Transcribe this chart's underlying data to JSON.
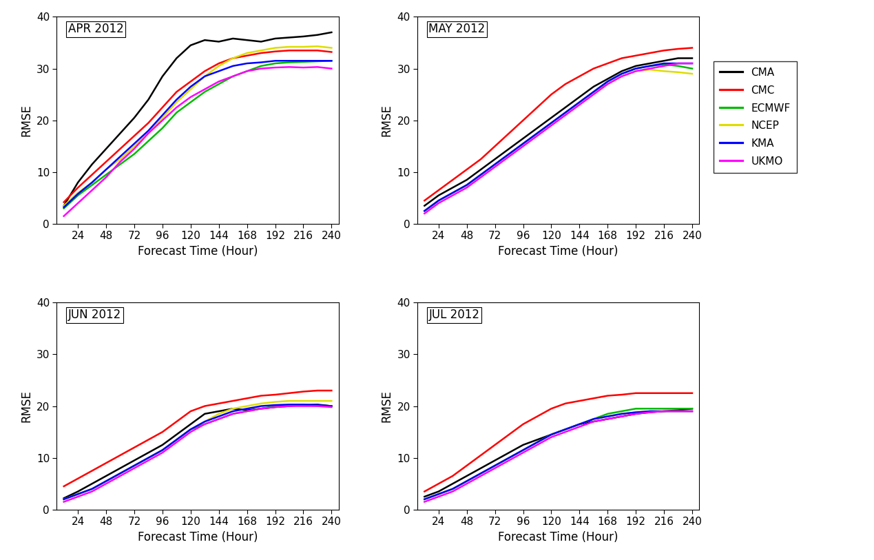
{
  "x": [
    12,
    24,
    36,
    48,
    60,
    72,
    84,
    96,
    108,
    120,
    132,
    144,
    156,
    168,
    180,
    192,
    204,
    216,
    228,
    240
  ],
  "panels": [
    {
      "title": "APR 2012",
      "series": {
        "CMA": [
          3.5,
          8.0,
          11.5,
          14.5,
          17.5,
          20.5,
          24.0,
          28.5,
          32.0,
          34.5,
          35.5,
          35.2,
          35.8,
          35.5,
          35.2,
          35.8,
          36.0,
          36.2,
          36.5,
          37.0
        ],
        "CMC": [
          4.2,
          7.0,
          9.5,
          12.0,
          14.5,
          17.0,
          19.5,
          22.5,
          25.5,
          27.5,
          29.5,
          31.0,
          32.0,
          32.5,
          33.0,
          33.3,
          33.5,
          33.5,
          33.5,
          33.2
        ],
        "ECMWF": [
          3.0,
          5.5,
          7.5,
          9.5,
          11.5,
          13.5,
          16.0,
          18.5,
          21.5,
          23.5,
          25.5,
          27.0,
          28.5,
          29.5,
          30.5,
          31.0,
          31.2,
          31.3,
          31.4,
          31.5
        ],
        "NCEP": [
          3.5,
          6.0,
          8.0,
          10.5,
          12.5,
          15.0,
          17.5,
          20.5,
          23.5,
          26.0,
          28.5,
          30.5,
          32.0,
          33.0,
          33.5,
          34.0,
          34.2,
          34.2,
          34.3,
          34.0
        ],
        "KMA": [
          3.2,
          5.8,
          8.0,
          10.5,
          13.0,
          15.5,
          18.0,
          21.0,
          24.0,
          26.5,
          28.5,
          29.5,
          30.5,
          31.0,
          31.2,
          31.5,
          31.5,
          31.5,
          31.5,
          31.5
        ],
        "UKMO": [
          1.5,
          4.0,
          6.5,
          9.0,
          12.0,
          14.5,
          17.5,
          20.0,
          22.5,
          24.5,
          26.0,
          27.5,
          28.5,
          29.5,
          30.0,
          30.2,
          30.3,
          30.2,
          30.3,
          30.0
        ]
      }
    },
    {
      "title": "MAY 2012",
      "series": {
        "CMA": [
          3.5,
          5.5,
          7.0,
          8.5,
          10.5,
          12.5,
          14.5,
          16.5,
          18.5,
          20.5,
          22.5,
          24.5,
          26.5,
          28.0,
          29.5,
          30.5,
          31.0,
          31.5,
          32.0,
          32.0
        ],
        "CMC": [
          4.5,
          6.5,
          8.5,
          10.5,
          12.5,
          15.0,
          17.5,
          20.0,
          22.5,
          25.0,
          27.0,
          28.5,
          30.0,
          31.0,
          32.0,
          32.5,
          33.0,
          33.5,
          33.8,
          34.0
        ],
        "ECMWF": [
          2.5,
          4.5,
          6.0,
          7.5,
          9.5,
          11.5,
          13.5,
          15.5,
          17.5,
          19.5,
          21.5,
          23.5,
          25.5,
          27.5,
          29.0,
          30.0,
          30.5,
          30.8,
          30.5,
          30.0
        ],
        "NCEP": [
          2.5,
          4.5,
          6.0,
          7.5,
          9.5,
          11.5,
          13.5,
          15.5,
          17.5,
          19.5,
          21.5,
          23.5,
          25.5,
          27.0,
          28.5,
          29.5,
          29.8,
          29.5,
          29.3,
          29.0
        ],
        "KMA": [
          2.5,
          4.5,
          6.0,
          7.5,
          9.5,
          11.5,
          13.5,
          15.5,
          17.5,
          19.5,
          21.5,
          23.5,
          25.5,
          27.5,
          29.0,
          30.0,
          30.5,
          31.0,
          31.0,
          31.0
        ],
        "UKMO": [
          2.0,
          4.0,
          5.5,
          7.0,
          9.0,
          11.0,
          13.0,
          15.0,
          17.0,
          19.0,
          21.0,
          23.0,
          25.0,
          27.0,
          28.5,
          29.5,
          30.0,
          30.5,
          31.0,
          31.0
        ]
      }
    },
    {
      "title": "JUN 2012",
      "series": {
        "CMA": [
          2.2,
          3.5,
          5.0,
          6.5,
          8.0,
          9.5,
          11.0,
          12.5,
          14.5,
          16.5,
          18.5,
          19.0,
          19.5,
          19.2,
          19.5,
          19.8,
          20.0,
          20.2,
          20.3,
          20.0
        ],
        "CMC": [
          4.5,
          6.0,
          7.5,
          9.0,
          10.5,
          12.0,
          13.5,
          15.0,
          17.0,
          19.0,
          20.0,
          20.5,
          21.0,
          21.5,
          22.0,
          22.2,
          22.5,
          22.8,
          23.0,
          23.0
        ],
        "ECMWF": [
          2.0,
          3.0,
          4.0,
          5.5,
          7.0,
          8.5,
          10.0,
          11.5,
          13.5,
          15.5,
          16.5,
          17.5,
          18.5,
          19.0,
          19.5,
          20.0,
          20.2,
          20.2,
          20.0,
          20.0
        ],
        "NCEP": [
          2.0,
          3.0,
          4.0,
          5.5,
          7.0,
          8.5,
          10.0,
          11.5,
          13.5,
          15.5,
          17.0,
          18.5,
          19.5,
          20.0,
          20.5,
          20.8,
          21.0,
          21.0,
          21.0,
          21.0
        ],
        "KMA": [
          2.0,
          3.0,
          4.0,
          5.5,
          7.0,
          8.5,
          10.0,
          11.5,
          13.5,
          15.5,
          17.0,
          18.0,
          19.0,
          19.5,
          20.0,
          20.2,
          20.3,
          20.3,
          20.2,
          20.0
        ],
        "UKMO": [
          1.5,
          2.5,
          3.5,
          5.0,
          6.5,
          8.0,
          9.5,
          11.0,
          13.0,
          15.0,
          16.5,
          17.5,
          18.5,
          19.0,
          19.5,
          19.8,
          20.0,
          20.0,
          20.0,
          19.8
        ]
      }
    },
    {
      "title": "JUL 2012",
      "series": {
        "CMA": [
          2.5,
          3.5,
          5.0,
          6.5,
          8.0,
          9.5,
          11.0,
          12.5,
          13.5,
          14.5,
          15.5,
          16.5,
          17.0,
          17.5,
          18.0,
          18.5,
          18.8,
          19.0,
          19.2,
          19.5
        ],
        "CMC": [
          3.5,
          5.0,
          6.5,
          8.5,
          10.5,
          12.5,
          14.5,
          16.5,
          18.0,
          19.5,
          20.5,
          21.0,
          21.5,
          22.0,
          22.2,
          22.5,
          22.5,
          22.5,
          22.5,
          22.5
        ],
        "ECMWF": [
          2.0,
          3.0,
          4.0,
          5.5,
          7.0,
          8.5,
          10.0,
          11.5,
          13.0,
          14.5,
          15.5,
          16.5,
          17.5,
          18.5,
          19.0,
          19.5,
          19.5,
          19.5,
          19.5,
          19.5
        ],
        "NCEP": [
          2.0,
          3.0,
          4.0,
          5.5,
          7.0,
          8.5,
          10.0,
          11.5,
          13.0,
          14.5,
          15.5,
          16.5,
          17.5,
          18.0,
          18.5,
          18.8,
          19.0,
          19.0,
          19.0,
          19.0
        ],
        "KMA": [
          2.0,
          3.0,
          4.0,
          5.5,
          7.0,
          8.5,
          10.0,
          11.5,
          13.0,
          14.5,
          15.5,
          16.5,
          17.5,
          18.0,
          18.5,
          18.8,
          19.0,
          19.0,
          19.0,
          19.0
        ],
        "UKMO": [
          1.5,
          2.5,
          3.5,
          5.0,
          6.5,
          8.0,
          9.5,
          11.0,
          12.5,
          14.0,
          15.0,
          16.0,
          17.0,
          17.5,
          18.0,
          18.5,
          18.8,
          19.0,
          19.0,
          19.0
        ]
      }
    }
  ],
  "colors": {
    "CMA": "#000000",
    "CMC": "#ff0000",
    "ECMWF": "#00bb00",
    "NCEP": "#dddd00",
    "KMA": "#0000ff",
    "UKMO": "#ff00ff"
  },
  "series_order": [
    "CMA",
    "CMC",
    "ECMWF",
    "NCEP",
    "KMA",
    "UKMO"
  ],
  "xlabel": "Forecast Time (Hour)",
  "ylabel": "RMSE",
  "xticks": [
    24,
    48,
    72,
    96,
    120,
    144,
    168,
    192,
    216,
    240
  ],
  "yticks": [
    0,
    10,
    20,
    30,
    40
  ],
  "ylim": [
    0,
    40
  ],
  "xlim": [
    6,
    246
  ],
  "linewidth": 1.8,
  "background_color": "#ffffff",
  "title_fontsize": 12,
  "axis_label_fontsize": 12,
  "tick_fontsize": 11
}
